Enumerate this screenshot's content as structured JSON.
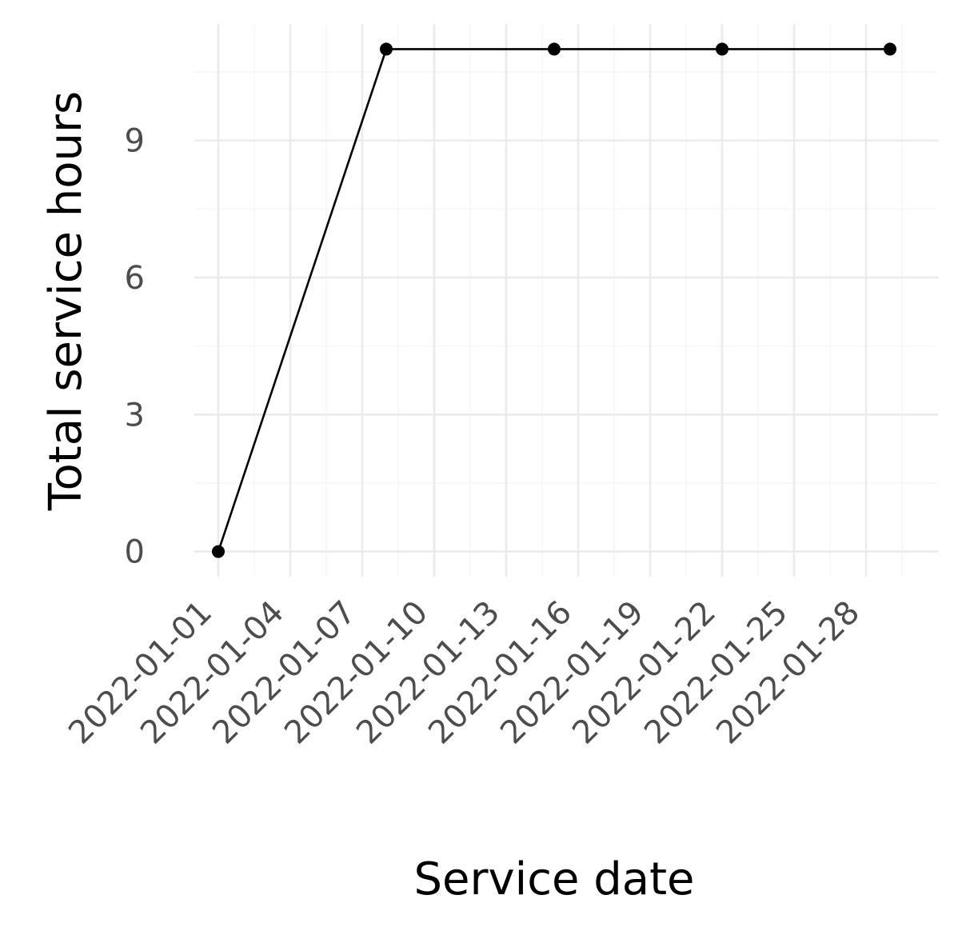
{
  "chart_data": {
    "type": "line",
    "title": "",
    "xlabel": "Service date",
    "ylabel": "Total service hours",
    "x_ticks": [
      "2022-01-01",
      "2022-01-04",
      "2022-01-07",
      "2022-01-10",
      "2022-01-13",
      "2022-01-16",
      "2022-01-19",
      "2022-01-22",
      "2022-01-25",
      "2022-01-28"
    ],
    "y_ticks": [
      0,
      3,
      6,
      9
    ],
    "xlim": [
      "2021-12-31",
      "2022-01-31"
    ],
    "ylim": [
      -0.55,
      11.55
    ],
    "grid": true,
    "legend": "none",
    "series": [
      {
        "color": "#000000",
        "points": [
          {
            "x": "2022-01-01",
            "y": 0
          },
          {
            "x": "2022-01-08",
            "y": 11
          },
          {
            "x": "2022-01-15",
            "y": 11
          },
          {
            "x": "2022-01-22",
            "y": 11
          },
          {
            "x": "2022-01-29",
            "y": 11
          }
        ]
      }
    ]
  }
}
